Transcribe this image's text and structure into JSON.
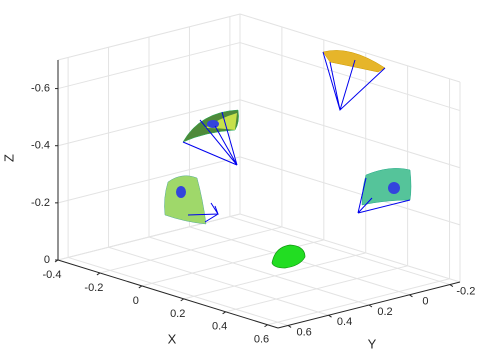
{
  "chart_data": {
    "type": "scatter3d",
    "xlabel": "X",
    "ylabel": "Y",
    "zlabel": "Z",
    "xlim": [
      -0.4,
      0.65
    ],
    "ylim": [
      -0.25,
      0.65
    ],
    "zlim": [
      0,
      -0.7
    ],
    "xticks": [
      -0.4,
      -0.2,
      0,
      0.2,
      0.4,
      0.6
    ],
    "yticks": [
      -0.2,
      0,
      0.2,
      0.4,
      0.6
    ],
    "zticks": [
      0,
      -0.2,
      -0.4,
      -0.6
    ],
    "grid": true
  }
}
